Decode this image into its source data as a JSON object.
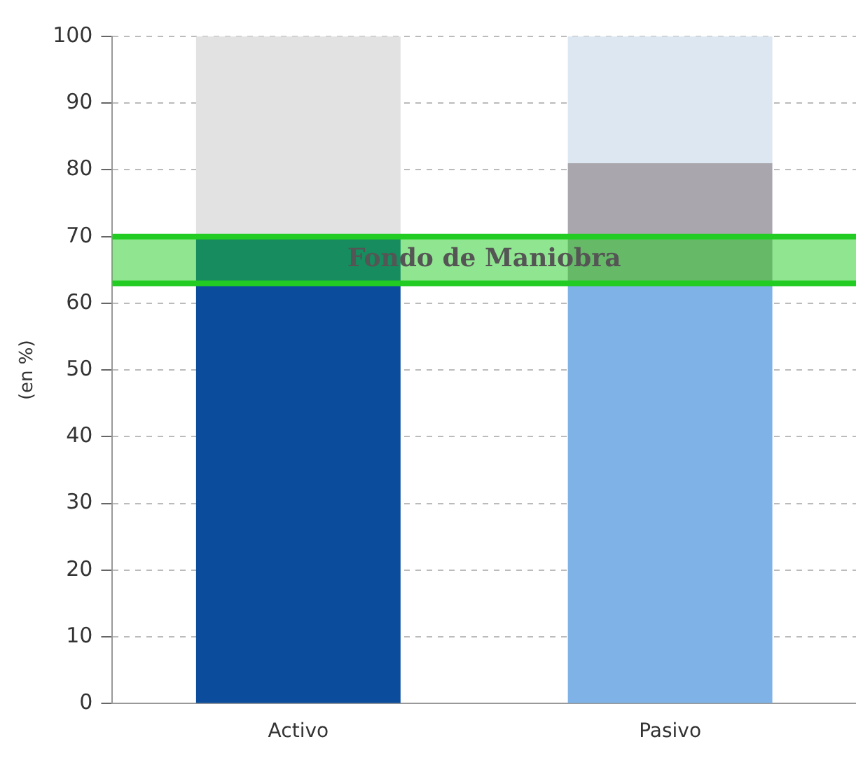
{
  "chart_data": {
    "type": "bar",
    "stacked": true,
    "ylabel": "(en %)",
    "categories": [
      "Activo",
      "Pasivo"
    ],
    "series": [
      {
        "colors": [
          "#0b4c9c",
          "#7fb2e6"
        ],
        "values": [
          70,
          63
        ]
      },
      {
        "colors": [
          "#e2e2e2",
          "#a9a7ad"
        ],
        "values": [
          30,
          18
        ]
      },
      {
        "colors": [
          null,
          "#dce7f2"
        ],
        "values": [
          null,
          19
        ]
      }
    ],
    "ylim": [
      0,
      100
    ],
    "yticks": [
      0,
      10,
      20,
      30,
      40,
      50,
      60,
      70,
      80,
      90,
      100
    ],
    "grid": "y",
    "legend": false,
    "ref_lines": [
      {
        "axis": "y",
        "value": 63,
        "color": "#22cc22"
      },
      {
        "axis": "y",
        "value": 70,
        "color": "#22cc22"
      }
    ],
    "bands": [
      {
        "axis": "y",
        "from": 63,
        "to": 70,
        "label": "Fondo de Maniobra",
        "color": "#22cc22"
      }
    ]
  }
}
